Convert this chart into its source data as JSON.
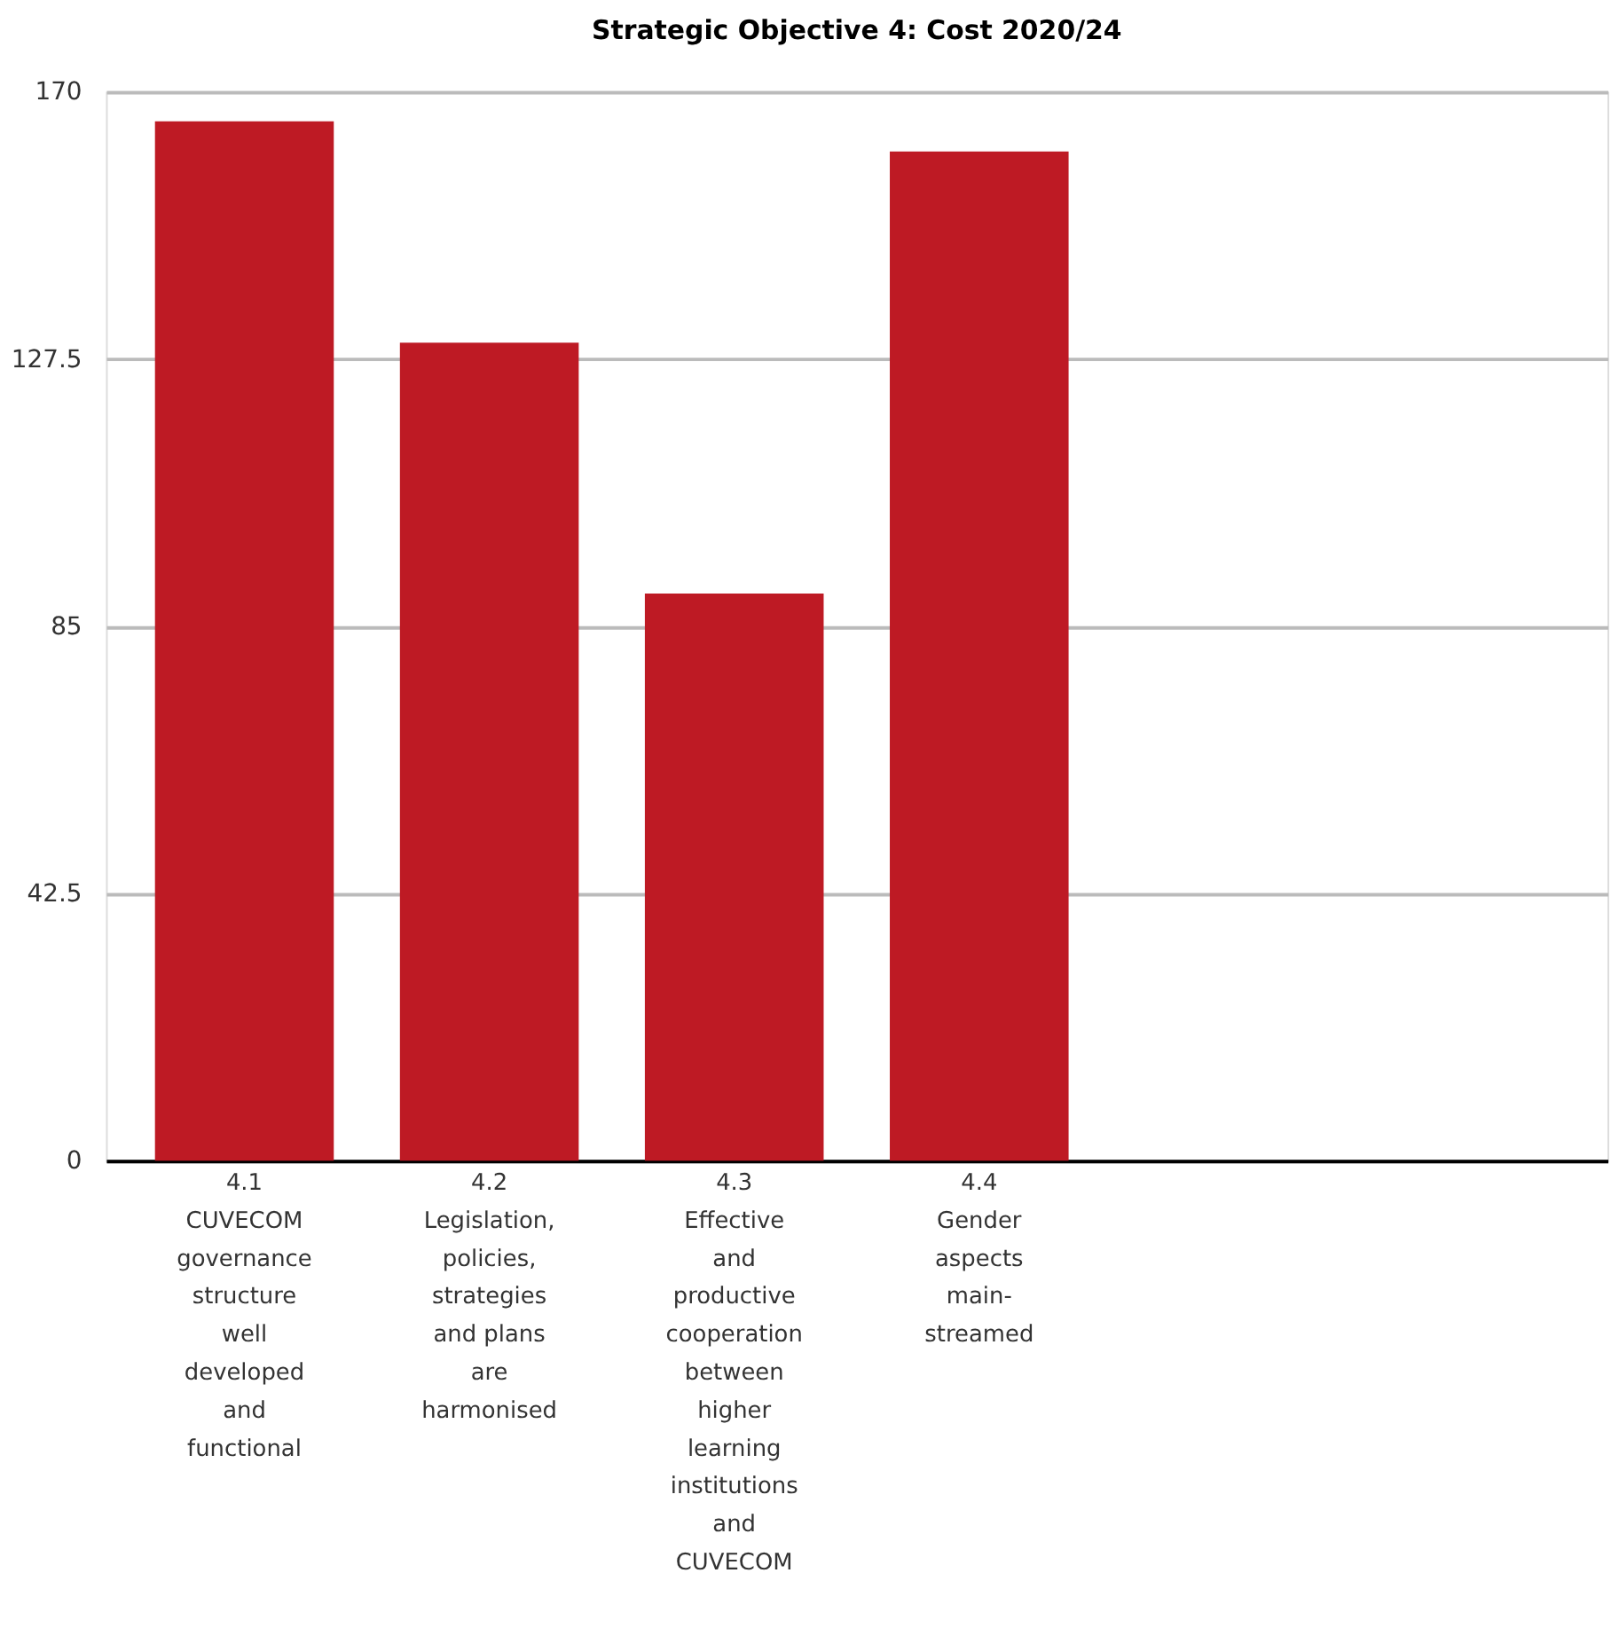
{
  "chart_data": {
    "type": "bar",
    "title": "Strategic Objective 4: Cost 2020/24",
    "categories": [
      "4.1\nCUVECOM\ngovernance\nstructure\nwell\ndeveloped\nand\nfunctional",
      "4.2\nLegislation,\npolicies,\nstrategies\nand plans\nare\nharmonised",
      "4.3\nEffective\nand\nproductive\ncooperation\nbetween\nhigher\nlearning\ninstitutions\nand\nCUVECOM",
      "4.4\nGender\naspects\nmain-\nstreamed",
      null,
      null
    ],
    "values": [
      165.3,
      130.1,
      90.2,
      160.5,
      null,
      null
    ],
    "color": "#be1a24",
    "ylim": [
      0,
      170
    ],
    "yticks": [
      0,
      42.5,
      85,
      127.5,
      170
    ],
    "grid": "y"
  }
}
